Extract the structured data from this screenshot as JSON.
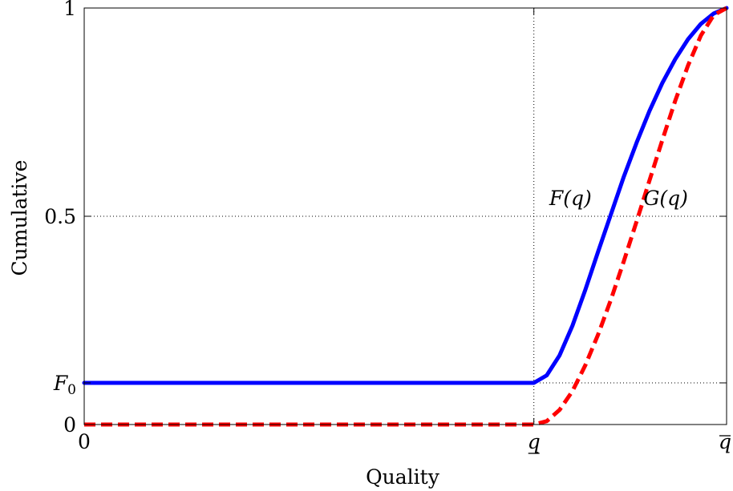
{
  "chart_data": {
    "type": "line",
    "xlabel": "Quality",
    "ylabel": "Cumulative",
    "xlim": [
      0,
      1
    ],
    "ylim": [
      0,
      1
    ],
    "grid": "dotted at labelled ticks",
    "legend": "none (inline curve labels)",
    "x_ticks": [
      {
        "value": 0,
        "label": "0",
        "style": "plain"
      },
      {
        "value": 0.7,
        "label": "q",
        "style": "underline"
      },
      {
        "value": 1,
        "label": "q",
        "style": "overline"
      }
    ],
    "y_ticks": [
      {
        "value": 0,
        "label": "0",
        "sub": ""
      },
      {
        "value": 0.1,
        "label": "F",
        "sub": "0"
      },
      {
        "value": 0.5,
        "label": "0.5",
        "sub": ""
      },
      {
        "value": 1,
        "label": "1",
        "sub": ""
      }
    ],
    "series": [
      {
        "name": "F(q)",
        "color": "#0000ff",
        "style": "solid",
        "x": [
          0,
          0.1,
          0.2,
          0.3,
          0.4,
          0.5,
          0.6,
          0.7,
          0.72,
          0.74,
          0.76,
          0.78,
          0.8,
          0.82,
          0.84,
          0.86,
          0.88,
          0.9,
          0.92,
          0.94,
          0.96,
          0.98,
          1
        ],
        "y": [
          0.1,
          0.1,
          0.1,
          0.1,
          0.1,
          0.1,
          0.1,
          0.1,
          0.118,
          0.166,
          0.237,
          0.323,
          0.415,
          0.505,
          0.595,
          0.677,
          0.753,
          0.82,
          0.877,
          0.925,
          0.962,
          0.987,
          1.0
        ]
      },
      {
        "name": "G(q)",
        "color": "#ff0000",
        "style": "dashed",
        "x": [
          0,
          0.1,
          0.2,
          0.3,
          0.4,
          0.5,
          0.6,
          0.7,
          0.72,
          0.74,
          0.76,
          0.78,
          0.8,
          0.82,
          0.84,
          0.86,
          0.88,
          0.9,
          0.92,
          0.94,
          0.96,
          0.98,
          1
        ],
        "y": [
          0,
          0,
          0,
          0,
          0,
          0,
          0,
          0,
          0.008,
          0.035,
          0.08,
          0.142,
          0.216,
          0.3,
          0.392,
          0.488,
          0.586,
          0.683,
          0.777,
          0.862,
          0.934,
          0.983,
          1.0
        ]
      }
    ],
    "annotations": [
      {
        "text": "F(q)",
        "series": "F(q)",
        "x": 0.79,
        "y": 0.5
      },
      {
        "text": "G(q)",
        "series": "G(q)",
        "x": 0.94,
        "y": 0.5
      }
    ]
  }
}
